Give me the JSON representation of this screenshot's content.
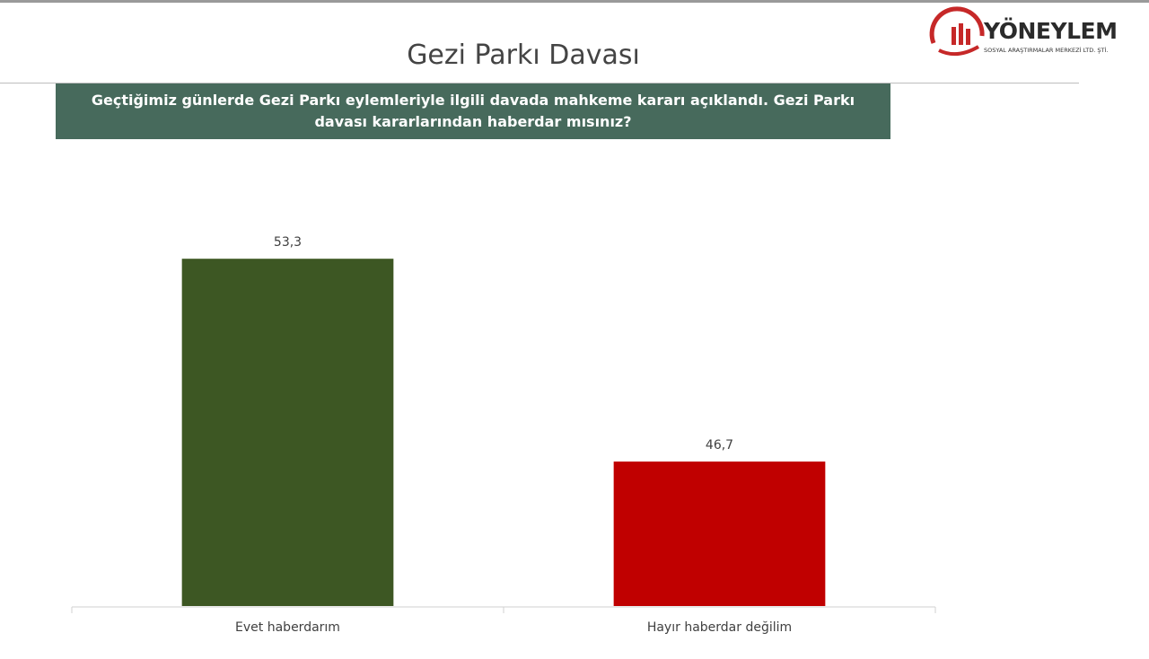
{
  "chart_data": {
    "type": "bar",
    "title": "Gezi Parkı Davası",
    "subtitle": "Geçtiğimiz günlerde Gezi Parkı eylemleriyle ilgili davada mahkeme kararı açıklandı. Gezi Parkı davası kararlarından haberdar mısınız?",
    "logo": {
      "name": "YÖNEYLEM",
      "tagline": "SOSYAL ARAŞTIRMALAR MERKEZİ LTD. ŞTİ."
    },
    "categories": [
      "Evet haberdarım",
      "Hayır haberdar değilim"
    ],
    "values": [
      53.3,
      46.7
    ],
    "value_labels": [
      "53,3",
      "46,7"
    ],
    "colors": [
      "#3d5723",
      "#c00000"
    ],
    "ylim": [
      42,
      55
    ]
  }
}
